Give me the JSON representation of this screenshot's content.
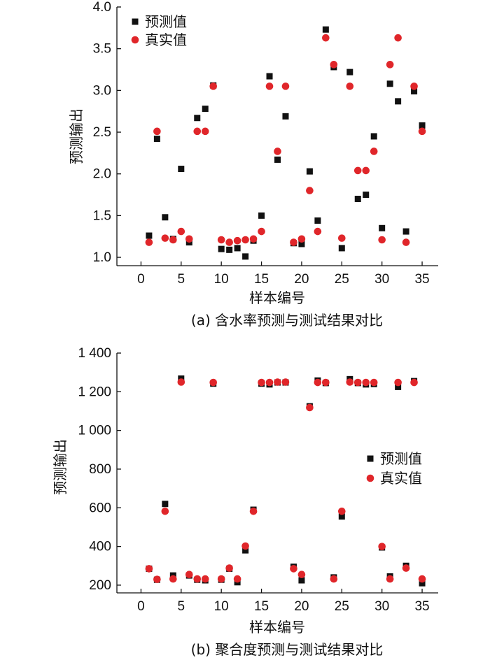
{
  "chart_data": [
    {
      "type": "scatter",
      "caption": "(a)  含水率预测与测试结果对比",
      "xlabel": "样本编号",
      "ylabel": "预测输出",
      "xlim": [
        -3,
        37
      ],
      "ylim": [
        0.9,
        4.0
      ],
      "xticks": [
        0,
        5,
        10,
        15,
        20,
        25,
        30,
        35
      ],
      "yticks": [
        1.0,
        1.5,
        2.0,
        2.5,
        3.0,
        3.5,
        4.0
      ],
      "ytick_labels": [
        "1.0",
        "1.5",
        "2.0",
        "2.5",
        "3.0",
        "3.5",
        "4.0"
      ],
      "grid": false,
      "legend_position": "top-left",
      "series": [
        {
          "name": "预测值",
          "marker": "square",
          "color": "#111111",
          "x": [
            1,
            2,
            3,
            4,
            5,
            6,
            7,
            8,
            9,
            10,
            11,
            12,
            13,
            14,
            15,
            16,
            17,
            18,
            19,
            20,
            21,
            22,
            23,
            24,
            25,
            26,
            27,
            28,
            29,
            30,
            31,
            32,
            33,
            34,
            35
          ],
          "y": [
            1.26,
            2.42,
            1.48,
            1.22,
            2.06,
            1.18,
            2.67,
            2.78,
            3.06,
            1.1,
            1.09,
            1.11,
            1.01,
            1.2,
            1.5,
            3.17,
            2.17,
            2.69,
            1.17,
            1.16,
            2.03,
            1.44,
            3.73,
            3.28,
            1.11,
            3.22,
            1.7,
            1.75,
            2.45,
            1.35,
            3.08,
            2.87,
            1.31,
            2.99,
            2.58
          ]
        },
        {
          "name": "真实值",
          "marker": "circle",
          "color": "#e0262a",
          "x": [
            1,
            2,
            3,
            4,
            5,
            6,
            7,
            8,
            9,
            10,
            11,
            12,
            13,
            14,
            15,
            16,
            17,
            18,
            19,
            20,
            21,
            22,
            23,
            24,
            25,
            26,
            27,
            28,
            29,
            30,
            31,
            32,
            33,
            34,
            35
          ],
          "y": [
            1.18,
            2.51,
            1.23,
            1.21,
            1.31,
            1.22,
            2.51,
            2.51,
            3.05,
            1.21,
            1.18,
            1.2,
            1.21,
            1.22,
            1.31,
            3.05,
            2.27,
            3.05,
            1.18,
            1.22,
            1.8,
            1.31,
            3.63,
            3.31,
            1.23,
            3.05,
            2.04,
            2.04,
            2.27,
            1.21,
            3.31,
            3.63,
            1.18,
            3.05,
            2.51
          ]
        }
      ]
    },
    {
      "type": "scatter",
      "caption": "(b)  聚合度预测与测试结果对比",
      "xlabel": "样本编号",
      "ylabel": "预测输出",
      "xlim": [
        -3,
        37
      ],
      "ylim": [
        160,
        1400
      ],
      "xticks": [
        0,
        5,
        10,
        15,
        20,
        25,
        30,
        35
      ],
      "yticks": [
        200,
        400,
        600,
        800,
        1000,
        1200,
        1400
      ],
      "ytick_labels": [
        "200",
        "400",
        "600",
        "800",
        "1 000",
        "1 200",
        "1 400"
      ],
      "grid": false,
      "legend_position": "center-right",
      "series": [
        {
          "name": "预测值",
          "marker": "square",
          "color": "#111111",
          "x": [
            1,
            2,
            3,
            4,
            5,
            6,
            7,
            8,
            9,
            10,
            11,
            12,
            13,
            14,
            15,
            16,
            17,
            18,
            19,
            20,
            21,
            22,
            23,
            24,
            25,
            26,
            27,
            28,
            29,
            30,
            31,
            32,
            33,
            34,
            35
          ],
          "y": [
            285,
            228,
            620,
            250,
            1268,
            250,
            228,
            225,
            1242,
            228,
            285,
            215,
            380,
            590,
            1242,
            1238,
            1248,
            1248,
            295,
            225,
            1125,
            1258,
            1245,
            240,
            555,
            1265,
            1245,
            1238,
            1240,
            395,
            245,
            1225,
            300,
            1255,
            210
          ]
        },
        {
          "name": "真实值",
          "marker": "circle",
          "color": "#e0262a",
          "x": [
            1,
            2,
            3,
            4,
            5,
            6,
            7,
            8,
            9,
            10,
            11,
            12,
            13,
            14,
            15,
            16,
            17,
            18,
            19,
            20,
            21,
            22,
            23,
            24,
            25,
            26,
            27,
            28,
            29,
            30,
            31,
            32,
            33,
            34,
            35
          ],
          "y": [
            285,
            230,
            582,
            232,
            1250,
            255,
            232,
            232,
            1248,
            232,
            288,
            232,
            402,
            582,
            1248,
            1248,
            1250,
            1250,
            285,
            255,
            1118,
            1248,
            1248,
            232,
            582,
            1250,
            1248,
            1248,
            1248,
            400,
            232,
            1248,
            288,
            1248,
            232
          ]
        }
      ]
    }
  ]
}
